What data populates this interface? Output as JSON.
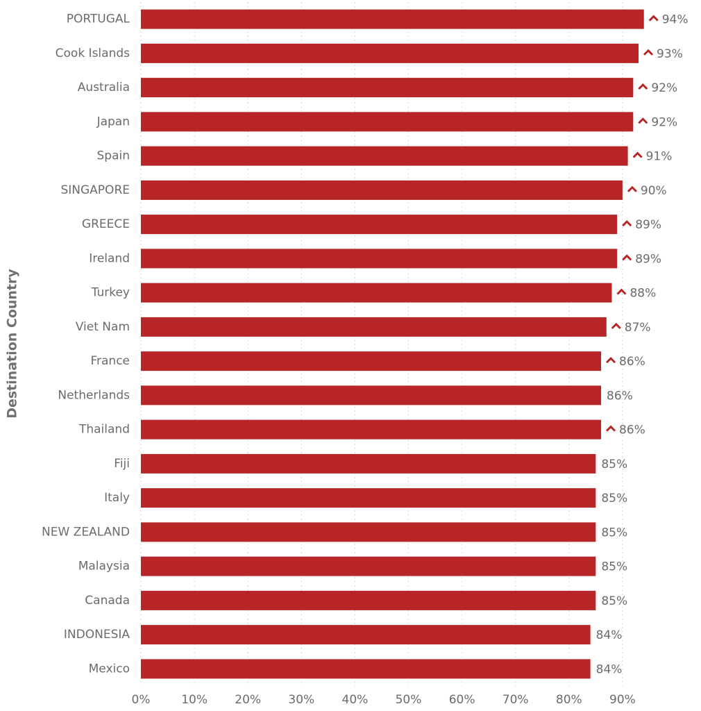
{
  "chart_data": {
    "type": "barh",
    "y_label": "Destination Country",
    "categories": [
      "PORTUGAL",
      "Cook Islands",
      "Australia",
      "Japan",
      "Spain",
      "SINGAPORE",
      "GREECE",
      "Ireland",
      "Turkey",
      "Viet Nam",
      "France",
      "Netherlands",
      "Thailand",
      "Fiji",
      "Italy",
      "NEW ZEALAND",
      "Malaysia",
      "Canada",
      "INDONESIA",
      "Mexico"
    ],
    "values": [
      94,
      93,
      92,
      92,
      91,
      90,
      89,
      89,
      88,
      87,
      86,
      86,
      86,
      85,
      85,
      85,
      85,
      85,
      84,
      84
    ],
    "value_labels": [
      "94%",
      "93%",
      "92%",
      "92%",
      "91%",
      "90%",
      "89%",
      "89%",
      "88%",
      "87%",
      "86%",
      "86%",
      "86%",
      "85%",
      "85%",
      "85%",
      "85%",
      "85%",
      "84%",
      "84%"
    ],
    "up_arrow": [
      true,
      true,
      true,
      true,
      true,
      true,
      true,
      true,
      true,
      true,
      true,
      false,
      true,
      false,
      false,
      false,
      false,
      false,
      false,
      false
    ],
    "color": "#b82526",
    "xlim": [
      0,
      100
    ],
    "xticks": [
      {
        "value": 0,
        "label": "0%"
      },
      {
        "value": 10,
        "label": "10%"
      },
      {
        "value": 20,
        "label": "20%"
      },
      {
        "value": 30,
        "label": "30%"
      },
      {
        "value": 40,
        "label": "40%"
      },
      {
        "value": 50,
        "label": "50%"
      },
      {
        "value": 60,
        "label": "60%"
      },
      {
        "value": 70,
        "label": "70%"
      },
      {
        "value": 80,
        "label": "80%"
      },
      {
        "value": 90,
        "label": "90%"
      }
    ],
    "grid": true
  }
}
